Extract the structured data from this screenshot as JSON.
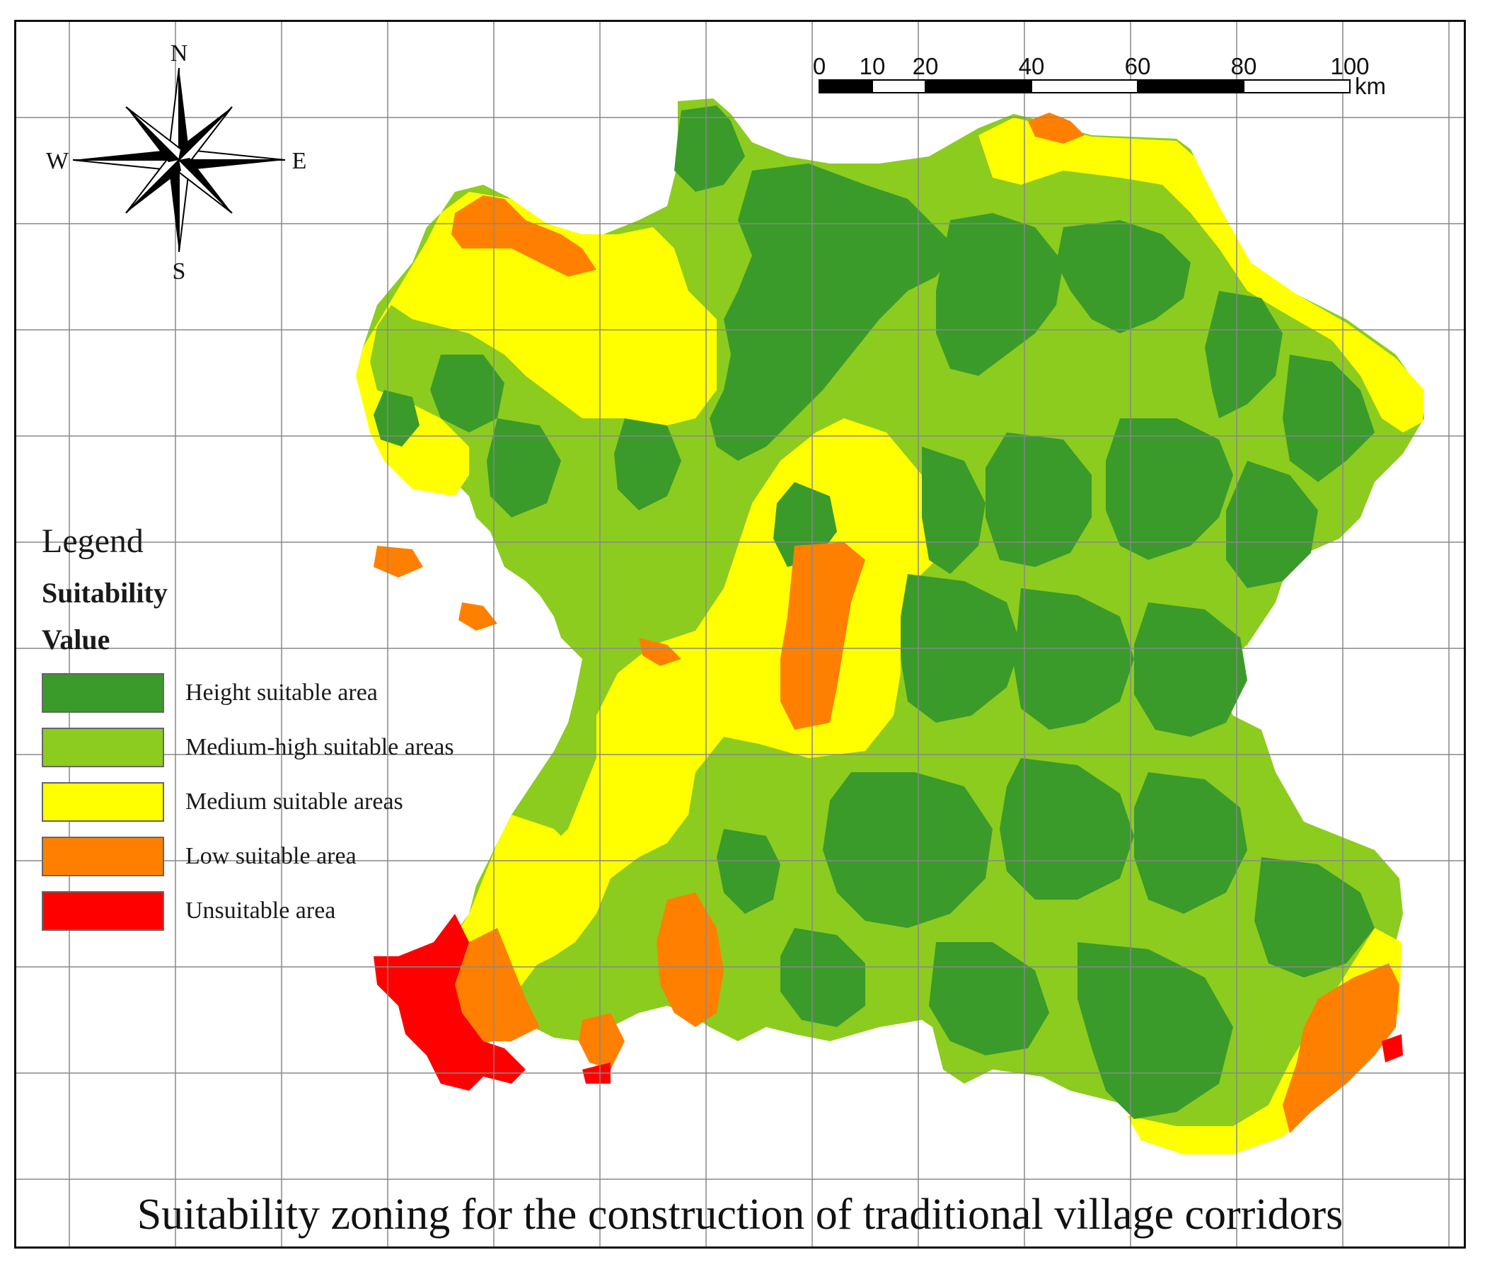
{
  "map": {
    "title": "Suitability zoning for the construction of traditional village corridors",
    "compass": {
      "north": "N",
      "south": "S",
      "east": "E",
      "west": "W"
    },
    "scale_bar": {
      "ticks": [
        "0",
        "10",
        "20",
        "40",
        "60",
        "80",
        "100"
      ],
      "unit": "km"
    },
    "legend": {
      "heading": "Legend",
      "field": "Suitability",
      "subheading": "Value",
      "classes": [
        {
          "label": "Height suitable area",
          "color": "#3a9b2a"
        },
        {
          "label": "Medium-high suitable areas",
          "color": "#8ccc1e"
        },
        {
          "label": "Medium suitable areas",
          "color": "#ffff00"
        },
        {
          "label": "Low suitable area",
          "color": "#ff8000"
        },
        {
          "label": "Unsuitable area",
          "color": "#ff0000"
        }
      ]
    }
  }
}
